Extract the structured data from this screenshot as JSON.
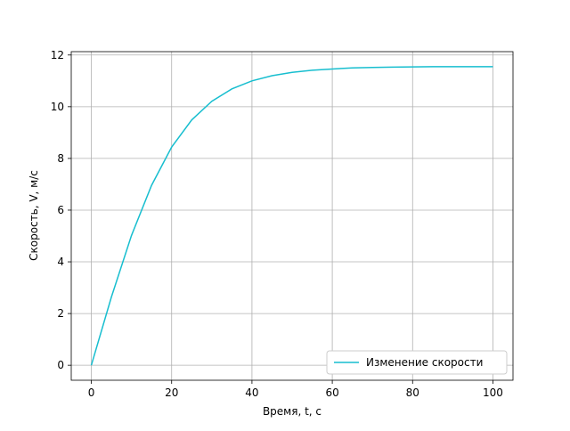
{
  "chart_data": {
    "type": "line",
    "x_label": "Время, t, с",
    "y_label": "Скорость, V, м/с",
    "x": [
      0,
      5,
      10,
      15,
      20,
      25,
      30,
      35,
      40,
      45,
      50,
      55,
      60,
      65,
      70,
      75,
      80,
      85,
      90,
      95,
      100
    ],
    "series": [
      {
        "name": "Изменение скорости",
        "color": "#17becf",
        "values": [
          0,
          2.64,
          5.02,
          6.96,
          8.44,
          9.49,
          10.21,
          10.69,
          11.0,
          11.2,
          11.33,
          11.41,
          11.46,
          11.5,
          11.52,
          11.53,
          11.54,
          11.55,
          11.55,
          11.55,
          11.55
        ]
      }
    ],
    "xlim": [
      -5,
      105
    ],
    "ylim": [
      -0.58,
      12.13
    ],
    "xticks": [
      0,
      20,
      40,
      60,
      80,
      100
    ],
    "yticks": [
      0,
      2,
      4,
      6,
      8,
      10,
      12
    ],
    "grid": true,
    "legend": "lower right"
  }
}
